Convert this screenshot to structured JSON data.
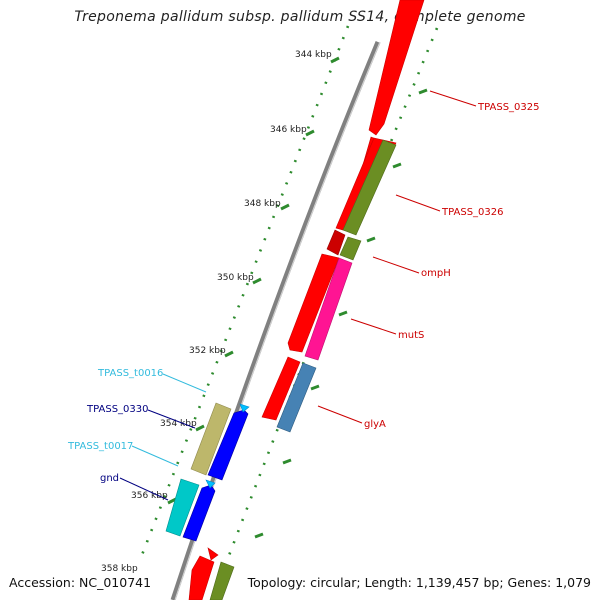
{
  "title": "Treponema pallidum subsp. pallidum SS14, complete genome",
  "footer": {
    "accession": "Accession: NC_010741",
    "summary": "Topology: circular; Length: 1,139,457 bp; Genes: 1,079"
  },
  "colors": {
    "backbone": "#808080",
    "tick": "#2e8b2e",
    "cds": "#ff0000",
    "olive": "#6b8e23",
    "magenta": "#ff1493",
    "steelblue": "#4682b4",
    "blue": "#0000ff",
    "khaki": "#bdb76b",
    "cyan": "#00c8c8",
    "trna": "#00bfff",
    "label_red": "#cc0000",
    "label_navy": "#000080",
    "label_cyan": "#33bbdd"
  },
  "ticks": [
    {
      "label": "344 kbp"
    },
    {
      "label": "346 kbp"
    },
    {
      "label": "348 kbp"
    },
    {
      "label": "350 kbp"
    },
    {
      "label": "352 kbp"
    },
    {
      "label": "354 kbp"
    },
    {
      "label": "356 kbp"
    },
    {
      "label": "358 kbp"
    }
  ],
  "features": [
    {
      "name": "TPASS_0325",
      "type": "CDS",
      "strand": "+"
    },
    {
      "name": "TPASS_0326",
      "type": "CDS",
      "strand": "+"
    },
    {
      "name": "ompH",
      "type": "CDS",
      "strand": "-"
    },
    {
      "name": "mutS",
      "type": "CDS",
      "strand": "+"
    },
    {
      "name": "glyA",
      "type": "CDS",
      "strand": "+"
    },
    {
      "name": "TPASS_t0016",
      "type": "tRNA",
      "strand": "+"
    },
    {
      "name": "TPASS_0330",
      "type": "CDS",
      "strand": "+"
    },
    {
      "name": "TPASS_t0017",
      "type": "tRNA",
      "strand": "+"
    },
    {
      "name": "gnd",
      "type": "CDS",
      "strand": "+"
    }
  ]
}
